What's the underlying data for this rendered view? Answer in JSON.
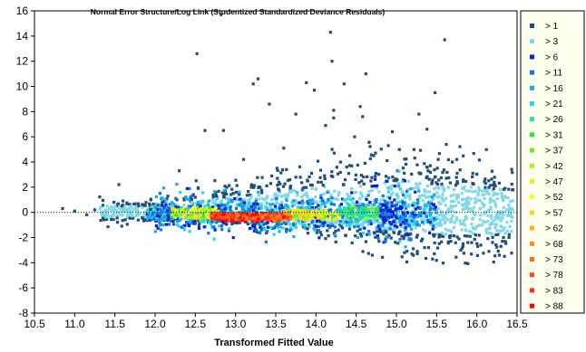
{
  "chart_data": {
    "type": "scatter",
    "title": "Normal Error Structure/Log Link (Studentized Standardized Deviance Residuals)",
    "xlabel": "Transformed Fitted Value",
    "ylabel": "",
    "xlim": [
      10.5,
      16.5
    ],
    "ylim": [
      -8,
      16
    ],
    "x_ticks": [
      "10.5",
      "11.0",
      "11.5",
      "12.0",
      "12.5",
      "13.0",
      "13.5",
      "14.0",
      "14.5",
      "15.0",
      "15.5",
      "16.0",
      "16.5"
    ],
    "y_ticks": [
      "-8",
      "-6",
      "-4",
      "-2",
      "0",
      "2",
      "4",
      "6",
      "8",
      "10",
      "12",
      "14",
      "16"
    ],
    "reference_line_y": 0,
    "grid": false,
    "legend_placement": "right",
    "legend": [
      {
        "label": "> 1",
        "color": "#1f4e79"
      },
      {
        "label": "> 3",
        "color": "#7fd8e8"
      },
      {
        "label": "> 6",
        "color": "#0a1fd6"
      },
      {
        "label": "> 11",
        "color": "#0a78e6"
      },
      {
        "label": "> 16",
        "color": "#1aa8f0"
      },
      {
        "label": "> 21",
        "color": "#22d8e8"
      },
      {
        "label": "> 26",
        "color": "#22e8a0"
      },
      {
        "label": "> 31",
        "color": "#22e83a"
      },
      {
        "label": "> 37",
        "color": "#6ee822"
      },
      {
        "label": "> 42",
        "color": "#aef022"
      },
      {
        "label": "> 47",
        "color": "#dcf522"
      },
      {
        "label": "> 52",
        "color": "#fafa22"
      },
      {
        "label": "> 57",
        "color": "#ffd21a"
      },
      {
        "label": "> 62",
        "color": "#ffb01a"
      },
      {
        "label": "> 68",
        "color": "#ff8c1a"
      },
      {
        "label": "> 73",
        "color": "#ff6a1a"
      },
      {
        "label": "> 78",
        "color": "#ff4a1a"
      },
      {
        "label": "> 83",
        "color": "#ff2a1a"
      },
      {
        "label": "> 88",
        "color": "#ff0000"
      }
    ],
    "outliers": [
      [
        10.85,
        0.3
      ],
      [
        11.0,
        0.1
      ],
      [
        11.15,
        -0.2
      ],
      [
        11.25,
        0.2
      ],
      [
        11.55,
        2.2
      ],
      [
        11.6,
        0.9
      ],
      [
        12.52,
        12.6
      ],
      [
        12.82,
        15.7
      ],
      [
        12.62,
        6.5
      ],
      [
        12.85,
        6.5
      ],
      [
        13.22,
        10.2
      ],
      [
        13.28,
        10.6
      ],
      [
        13.42,
        8.6
      ],
      [
        13.52,
        2.7
      ],
      [
        13.75,
        7.8
      ],
      [
        13.88,
        10.3
      ],
      [
        13.98,
        9.7
      ],
      [
        14.12,
        6.9
      ],
      [
        14.18,
        14.3
      ],
      [
        14.2,
        12.0
      ],
      [
        14.22,
        8.1
      ],
      [
        14.22,
        7.5
      ],
      [
        14.35,
        10.2
      ],
      [
        14.42,
        4.5
      ],
      [
        14.55,
        8.4
      ],
      [
        14.58,
        7.6
      ],
      [
        14.62,
        11.0
      ],
      [
        14.48,
        6.0
      ],
      [
        14.95,
        6.4
      ],
      [
        15.28,
        7.8
      ],
      [
        15.38,
        6.6
      ],
      [
        15.52,
        4.2
      ],
      [
        15.6,
        13.7
      ],
      [
        15.48,
        9.5
      ],
      [
        15.62,
        5.4
      ],
      [
        15.75,
        4.2
      ],
      [
        13.6,
        5.1
      ],
      [
        14.2,
        5.0
      ],
      [
        14.9,
        5.3
      ],
      [
        13.1,
        4.2
      ],
      [
        12.3,
        3.3
      ],
      [
        15.95,
        3.1
      ],
      [
        16.28,
        -3.4
      ],
      [
        16.15,
        -3.1
      ],
      [
        16.3,
        -2.7
      ],
      [
        15.8,
        -3.0
      ],
      [
        16.4,
        -2.0
      ],
      [
        16.45,
        1.8
      ],
      [
        14.7,
        -3.4
      ],
      [
        15.1,
        -3.2
      ],
      [
        15.35,
        -2.8
      ],
      [
        16.05,
        -2.6
      ]
    ],
    "density_bands": [
      {
        "x": [
          11.9,
          12.2
        ],
        "y": [
          -0.6,
          0.3
        ],
        "level": "> 16"
      },
      {
        "x": [
          12.2,
          12.8
        ],
        "y": [
          -0.5,
          0.4
        ],
        "level": "> 47"
      },
      {
        "x": [
          12.8,
          13.6
        ],
        "y": [
          -0.7,
          -0.1
        ],
        "level": "> 83"
      },
      {
        "x": [
          13.6,
          14.3
        ],
        "y": [
          -0.6,
          0.2
        ],
        "level": "> 52"
      },
      {
        "x": [
          14.3,
          14.8
        ],
        "y": [
          -0.5,
          0.4
        ],
        "level": "> 31"
      },
      {
        "x": [
          14.8,
          15.1
        ],
        "y": [
          -0.8,
          0.8
        ],
        "level": "> 6"
      }
    ]
  }
}
